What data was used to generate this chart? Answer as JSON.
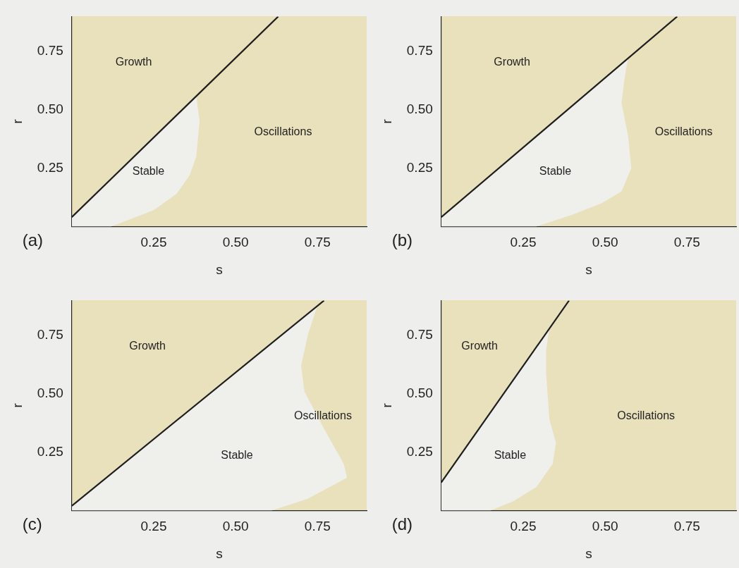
{
  "chart_data": [
    {
      "type": "line",
      "title": "(a)",
      "xlabel": "s",
      "ylabel": "r",
      "xlim": [
        0,
        0.9
      ],
      "ylim": [
        0,
        0.9
      ],
      "xticks": [
        {
          "value": 0.25,
          "label": "0.25"
        },
        {
          "value": 0.5,
          "label": "0.50"
        },
        {
          "value": 0.75,
          "label": "0.75"
        }
      ],
      "yticks": [
        {
          "value": 0.25,
          "label": "0.25"
        },
        {
          "value": 0.5,
          "label": "0.50"
        },
        {
          "value": 0.75,
          "label": "0.75"
        }
      ],
      "grid": false,
      "series": [
        {
          "type": "area",
          "color": "#efefec",
          "x": [
            0,
            0.38,
            0.39,
            0.38,
            0.36,
            0.32,
            0.25,
            0.12,
            0
          ],
          "values": [
            0.04,
            0.56,
            0.45,
            0.3,
            0.22,
            0.14,
            0.07,
            0,
            0
          ]
        },
        {
          "type": "line",
          "color": "#1e1e1e",
          "x": [
            0,
            0.63
          ],
          "values": [
            0.04,
            0.9
          ]
        }
      ],
      "annotations": [
        "Growth",
        "Stable",
        "Oscillations"
      ]
    },
    {
      "type": "line",
      "title": "(b)",
      "xlabel": "s",
      "ylabel": "r",
      "xlim": [
        0,
        0.9
      ],
      "ylim": [
        0,
        0.9
      ],
      "xticks": [
        {
          "value": 0.25,
          "label": "0.25"
        },
        {
          "value": 0.5,
          "label": "0.50"
        },
        {
          "value": 0.75,
          "label": "0.75"
        }
      ],
      "yticks": [
        {
          "value": 0.25,
          "label": "0.25"
        },
        {
          "value": 0.5,
          "label": "0.50"
        },
        {
          "value": 0.75,
          "label": "0.75"
        }
      ],
      "grid": false,
      "series": [
        {
          "type": "area",
          "color": "#efefec",
          "x": [
            0,
            0.57,
            0.56,
            0.55,
            0.57,
            0.58,
            0.55,
            0.49,
            0.4,
            0.29,
            0
          ],
          "values": [
            0.04,
            0.72,
            0.64,
            0.53,
            0.39,
            0.25,
            0.15,
            0.1,
            0.05,
            0,
            0
          ]
        },
        {
          "type": "line",
          "color": "#1e1e1e",
          "x": [
            0,
            0.72
          ],
          "values": [
            0.04,
            0.9
          ]
        }
      ],
      "annotations": [
        "Growth",
        "Stable",
        "Oscillations"
      ]
    },
    {
      "type": "line",
      "title": "(c)",
      "xlabel": "s",
      "ylabel": "r",
      "xlim": [
        0,
        0.9
      ],
      "ylim": [
        0,
        0.9
      ],
      "xticks": [
        {
          "value": 0.25,
          "label": "0.25"
        },
        {
          "value": 0.5,
          "label": "0.50"
        },
        {
          "value": 0.75,
          "label": "0.75"
        }
      ],
      "yticks": [
        {
          "value": 0.25,
          "label": "0.25"
        },
        {
          "value": 0.5,
          "label": "0.50"
        },
        {
          "value": 0.75,
          "label": "0.75"
        }
      ],
      "grid": false,
      "series": [
        {
          "type": "area",
          "color": "#efefec",
          "x": [
            0,
            0.75,
            0.72,
            0.7,
            0.71,
            0.77,
            0.83,
            0.84,
            0.72,
            0.61,
            0
          ],
          "values": [
            0.02,
            0.88,
            0.75,
            0.62,
            0.51,
            0.35,
            0.2,
            0.14,
            0.05,
            0,
            0
          ]
        },
        {
          "type": "line",
          "color": "#1e1e1e",
          "x": [
            0,
            0.77
          ],
          "values": [
            0.02,
            0.9
          ]
        }
      ],
      "annotations": [
        "Growth",
        "Stable",
        "Oscillations"
      ]
    },
    {
      "type": "line",
      "title": "(d)",
      "xlabel": "s",
      "ylabel": "r",
      "xlim": [
        0,
        0.9
      ],
      "ylim": [
        0,
        0.9
      ],
      "xticks": [
        {
          "value": 0.25,
          "label": "0.25"
        },
        {
          "value": 0.5,
          "label": "0.50"
        },
        {
          "value": 0.75,
          "label": "0.75"
        }
      ],
      "yticks": [
        {
          "value": 0.25,
          "label": "0.25"
        },
        {
          "value": 0.5,
          "label": "0.50"
        },
        {
          "value": 0.75,
          "label": "0.75"
        }
      ],
      "grid": false,
      "series": [
        {
          "type": "area",
          "color": "#efefec",
          "x": [
            0,
            0.33,
            0.32,
            0.32,
            0.33,
            0.35,
            0.34,
            0.29,
            0.22,
            0.15,
            0
          ],
          "values": [
            0.12,
            0.78,
            0.69,
            0.59,
            0.39,
            0.29,
            0.2,
            0.1,
            0.04,
            0,
            0
          ]
        },
        {
          "type": "line",
          "color": "#1e1e1e",
          "x": [
            0,
            0.39
          ],
          "values": [
            0.12,
            0.9
          ]
        }
      ],
      "annotations": [
        "Growth",
        "Stable",
        "Oscillations"
      ]
    }
  ]
}
